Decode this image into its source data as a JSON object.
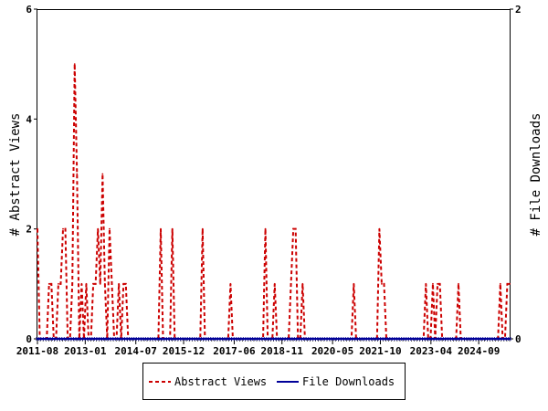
{
  "chart_data": {
    "type": "line",
    "ylabel_left": "# Abstract Views",
    "ylabel_right": "# File Downloads",
    "ylim_left": [
      0,
      6
    ],
    "ylim_right": [
      0,
      2
    ],
    "yticks_left": [
      "0",
      "2",
      "4",
      "6"
    ],
    "yticks_right": [
      "0",
      "2"
    ],
    "x_range": [
      "2011-08",
      "2025-08"
    ],
    "xtick_labels": [
      "2011-08",
      "2013-01",
      "2014-07",
      "2015-12",
      "2017-06",
      "2018-11",
      "2020-05",
      "2021-10",
      "2023-04",
      "2024-09"
    ],
    "legend_position": "bottom-center",
    "series": [
      {
        "name": "Abstract Views",
        "color": "#cc0000",
        "style": "dashed",
        "axis": "left",
        "values": [
          2,
          0,
          0,
          0,
          0,
          1,
          1,
          0,
          0,
          1,
          1,
          2,
          2,
          0,
          0,
          1,
          5,
          3,
          0,
          1,
          0,
          1,
          0,
          0,
          1,
          1,
          2,
          1,
          3,
          1,
          0,
          2,
          1,
          0,
          0,
          1,
          0,
          1,
          1,
          0,
          0,
          0,
          0,
          0,
          0,
          0,
          0,
          0,
          0,
          0,
          0,
          0,
          0,
          2,
          0,
          0,
          0,
          0,
          2,
          0,
          0,
          0,
          0,
          0,
          0,
          0,
          0,
          0,
          0,
          0,
          0,
          2,
          0,
          0,
          0,
          0,
          0,
          0,
          0,
          0,
          0,
          0,
          0,
          1,
          0,
          0,
          0,
          0,
          0,
          0,
          0,
          0,
          0,
          0,
          0,
          0,
          0,
          0,
          2,
          0,
          0,
          0,
          1,
          0,
          0,
          0,
          0,
          0,
          0,
          1,
          2,
          2,
          0,
          0,
          1,
          0,
          0,
          0,
          0,
          0,
          0,
          0,
          0,
          0,
          0,
          0,
          0,
          0,
          0,
          0,
          0,
          0,
          0,
          0,
          0,
          0,
          1,
          0,
          0,
          0,
          0,
          0,
          0,
          0,
          0,
          0,
          0,
          2,
          1,
          1,
          0,
          0,
          0,
          0,
          0,
          0,
          0,
          0,
          0,
          0,
          0,
          0,
          0,
          0,
          0,
          0,
          0,
          1,
          0,
          0,
          1,
          0,
          1,
          1,
          0,
          0,
          0,
          0,
          0,
          0,
          0,
          1,
          0,
          0,
          0,
          0,
          0,
          0,
          0,
          0,
          0,
          0,
          0,
          0,
          0,
          0,
          0,
          0,
          0,
          1,
          0,
          0,
          1,
          1
        ]
      },
      {
        "name": "File Downloads",
        "color": "#000099",
        "style": "solid",
        "axis": "right",
        "values": [
          0,
          0,
          0,
          0,
          0,
          0,
          0,
          0,
          0,
          0,
          0,
          0,
          0,
          0,
          0,
          0,
          0,
          0,
          0,
          0,
          0,
          0,
          0,
          0,
          0,
          0,
          0,
          0,
          0,
          0,
          0,
          0,
          0,
          0,
          0,
          0,
          0,
          0,
          0,
          0,
          0,
          0,
          0,
          0,
          0,
          0,
          0,
          0,
          0,
          0,
          0,
          0,
          0,
          0,
          0,
          0,
          0,
          0,
          0,
          0,
          0,
          0,
          0,
          0,
          0,
          0,
          0,
          0,
          0,
          0,
          0,
          0,
          0,
          0,
          0,
          0,
          0,
          0,
          0,
          0,
          0,
          0,
          0,
          0,
          0,
          0,
          0,
          0,
          0,
          0,
          0,
          0,
          0,
          0,
          0,
          0,
          0,
          0,
          0,
          0,
          0,
          0,
          0,
          0,
          0,
          0,
          0,
          0,
          0,
          0,
          0,
          0,
          0,
          0,
          0,
          0,
          0,
          0,
          0,
          0,
          0,
          0,
          0,
          0,
          0,
          0,
          0,
          0,
          0,
          0,
          0,
          0,
          0,
          0,
          0,
          0,
          0,
          0,
          0,
          0,
          0,
          0,
          0,
          0,
          0,
          0,
          0,
          0,
          0,
          0,
          0,
          0,
          0,
          0,
          0,
          0,
          0,
          0,
          0,
          0,
          0,
          0,
          0,
          0,
          0,
          0,
          0,
          0,
          0,
          0,
          0,
          0,
          0,
          0,
          0,
          0,
          0,
          0,
          0,
          0,
          0,
          0,
          0,
          0,
          0,
          0,
          0,
          0,
          0,
          0,
          0,
          0,
          0,
          0,
          0,
          0,
          0,
          0,
          0,
          0,
          0,
          0,
          0,
          0
        ]
      }
    ]
  }
}
